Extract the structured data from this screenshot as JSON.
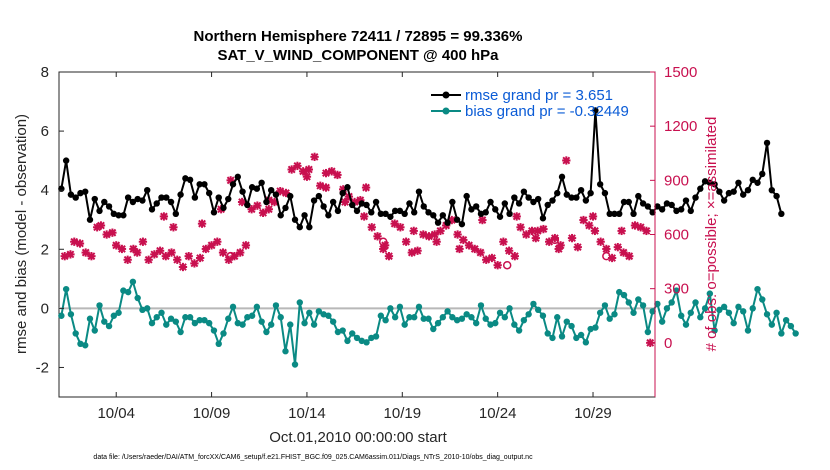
{
  "chart_data": {
    "type": "line",
    "title_line1": "Northern Hemisphere 72411 / 72895 = 99.336%",
    "title_line2": "SAT_V_WIND_COMPONENT @ 400 hPa",
    "ylabel": "rmse and bias (model - observation)",
    "ylabel_right": "# of obs: o=possible; ×=assimilated",
    "xlabel": "Oct.01,2010 00:00:00 start",
    "footnote": "data file: /Users/raeder/DAI/ATM_forcXX/CAM6_setup/f.e21.FHIST_BGC.f09_025.CAM6assim.011/Diags_NTrS_2010-10/obs_diag_output.nc",
    "xlim": [
      1,
      32.25
    ],
    "ylim": [
      -3,
      8
    ],
    "ylim_right": [
      -300,
      1500
    ],
    "x_ticks": [
      4,
      9,
      14,
      19,
      24,
      29
    ],
    "x_tick_labels": [
      "10/04",
      "10/09",
      "10/14",
      "10/19",
      "10/24",
      "10/29"
    ],
    "y_ticks": [
      -2,
      0,
      2,
      4,
      6,
      8
    ],
    "y_tick_labels": [
      "-2",
      "0",
      "2",
      "4",
      "6",
      "8"
    ],
    "y_ticks_right": [
      0,
      300,
      600,
      900,
      1200,
      1500
    ],
    "y_tick_labels_right": [
      "0",
      "300",
      "600",
      "900",
      "1200",
      "1500"
    ],
    "legend": [
      "rmse grand pr = 3.651",
      "bias grand pr = -0.32449"
    ],
    "series": [
      {
        "name": "rmse",
        "color": "#000000",
        "x_start": 1.125,
        "x_step": 0.25,
        "values": [
          4.05,
          5.0,
          3.85,
          3.75,
          3.9,
          3.95,
          3.0,
          3.7,
          3.3,
          3.6,
          3.45,
          3.2,
          3.15,
          3.15,
          3.75,
          3.6,
          3.7,
          3.65,
          4.0,
          3.35,
          3.55,
          3.75,
          3.75,
          3.6,
          3.2,
          3.85,
          4.4,
          4.35,
          3.75,
          4.2,
          4.2,
          3.9,
          3.25,
          3.75,
          3.4,
          3.7,
          4.2,
          4.45,
          3.95,
          3.5,
          4.1,
          4.05,
          4.25,
          3.6,
          4.0,
          3.85,
          3.15,
          3.4,
          3.8,
          3.0,
          2.75,
          3.15,
          2.75,
          3.65,
          3.8,
          3.45,
          3.15,
          3.6,
          3.3,
          3.9,
          4.1,
          3.5,
          3.3,
          3.55,
          3.5,
          3.25,
          3.6,
          3.2,
          3.2,
          3.1,
          3.3,
          3.3,
          3.2,
          3.55,
          3.25,
          3.95,
          3.45,
          3.25,
          3.15,
          2.9,
          3.15,
          2.9,
          3.6,
          3.0,
          2.85,
          3.8,
          3.35,
          3.45,
          3.2,
          3.25,
          3.6,
          3.35,
          3.1,
          3.55,
          3.2,
          3.75,
          3.55,
          3.95,
          3.75,
          3.6,
          3.7,
          3.05,
          3.5,
          3.65,
          3.9,
          4.45,
          3.85,
          3.75,
          3.75,
          4.0,
          3.65,
          3.9,
          6.7,
          4.2,
          3.9,
          3.2,
          3.2,
          3.2,
          3.6,
          3.6,
          3.2,
          3.8,
          3.55,
          3.45,
          3.25,
          3.45,
          3.35,
          3.55,
          3.5,
          3.3,
          3.35,
          3.65,
          3.3,
          3.75,
          4.05,
          4.3,
          4.25,
          4.2,
          3.95,
          3.65,
          3.9,
          3.95,
          4.25,
          3.85,
          4.0,
          4.35,
          4.25,
          4.55,
          5.6,
          4.0,
          3.8,
          3.2
        ]
      },
      {
        "name": "bias",
        "color": "#0a8a84",
        "x_start": 1.125,
        "x_step": 0.25,
        "values": [
          -0.25,
          0.65,
          -0.2,
          -0.85,
          -1.2,
          -1.25,
          -0.35,
          -0.75,
          0.1,
          -0.45,
          -0.6,
          -0.25,
          -0.15,
          0.6,
          0.55,
          0.9,
          0.35,
          -0.05,
          0.0,
          -0.5,
          -0.3,
          -0.15,
          -0.55,
          -0.35,
          -0.45,
          -0.8,
          -0.3,
          -0.3,
          -0.5,
          -0.4,
          -0.4,
          -0.5,
          -0.75,
          -1.2,
          -0.85,
          -0.35,
          0.05,
          -0.5,
          -0.55,
          -0.3,
          -0.25,
          0.05,
          -0.45,
          -0.8,
          -0.55,
          0.1,
          -0.3,
          -1.45,
          -0.55,
          -1.9,
          0.2,
          -0.5,
          -0.15,
          -0.55,
          -0.1,
          -0.2,
          -0.25,
          -0.45,
          -0.8,
          -0.75,
          -1.1,
          -0.85,
          -1.0,
          -1.1,
          -1.15,
          -1.0,
          -0.95,
          -0.25,
          -0.4,
          0.0,
          -0.3,
          0.05,
          -0.55,
          -0.3,
          -0.3,
          0.05,
          -0.35,
          -0.35,
          -0.7,
          -0.5,
          -0.3,
          -0.1,
          -0.3,
          -0.4,
          -0.35,
          -0.2,
          -0.3,
          -0.5,
          0.1,
          -0.35,
          -0.55,
          -0.5,
          -0.15,
          -0.3,
          0.0,
          -0.55,
          -0.75,
          -0.4,
          -0.2,
          0.15,
          -0.05,
          -0.25,
          -0.85,
          -1.0,
          -0.3,
          -0.95,
          -0.45,
          -0.6,
          -1.0,
          -0.9,
          -1.15,
          -0.7,
          -0.65,
          -0.15,
          0.1,
          -0.35,
          -0.2,
          0.55,
          0.45,
          0.2,
          -0.15,
          0.3,
          0.1,
          -0.8,
          -0.1,
          0.15,
          -0.45,
          0.0,
          0.2,
          0.6,
          -0.25,
          -0.55,
          -0.15,
          0.2,
          -0.3,
          0.0,
          0.5,
          -0.75,
          -0.05,
          0.05,
          -0.15,
          -0.5,
          0.05,
          -0.1,
          -0.75,
          0.0,
          0.65,
          0.3,
          -0.2,
          -0.55,
          -0.15,
          -0.85,
          -0.4,
          -0.6,
          -0.85
        ]
      },
      {
        "name": "assimilated obs count",
        "color": "#c8104f",
        "marker": "x",
        "points": [
          [
            1.3,
            480
          ],
          [
            1.6,
            490
          ],
          [
            1.8,
            560
          ],
          [
            2.1,
            550
          ],
          [
            2.4,
            500
          ],
          [
            2.7,
            480
          ],
          [
            3.0,
            640
          ],
          [
            3.2,
            650
          ],
          [
            3.5,
            600
          ],
          [
            3.8,
            610
          ],
          [
            4.0,
            540
          ],
          [
            4.3,
            520
          ],
          [
            4.6,
            460
          ],
          [
            4.9,
            520
          ],
          [
            5.1,
            500
          ],
          [
            5.4,
            560
          ],
          [
            5.7,
            460
          ],
          [
            6.0,
            490
          ],
          [
            6.3,
            510
          ],
          [
            6.6,
            480
          ],
          [
            6.9,
            500
          ],
          [
            7.2,
            460
          ],
          [
            7.5,
            420
          ],
          [
            7.8,
            480
          ],
          [
            8.1,
            440
          ],
          [
            8.4,
            470
          ],
          [
            8.7,
            520
          ],
          [
            9.0,
            540
          ],
          [
            9.3,
            560
          ],
          [
            9.6,
            500
          ],
          [
            9.9,
            460
          ],
          [
            10.2,
            480
          ],
          [
            10.5,
            500
          ],
          [
            10.8,
            540
          ],
          [
            11.1,
            740
          ],
          [
            11.4,
            760
          ],
          [
            11.7,
            720
          ],
          [
            12.0,
            790
          ],
          [
            12.3,
            780
          ],
          [
            12.6,
            840
          ],
          [
            12.9,
            830
          ],
          [
            13.2,
            960
          ],
          [
            13.5,
            980
          ],
          [
            13.8,
            950
          ],
          [
            14.1,
            960
          ],
          [
            14.4,
            1030
          ],
          [
            14.7,
            870
          ],
          [
            15.0,
            860
          ],
          [
            15.3,
            950
          ],
          [
            15.6,
            930
          ],
          [
            15.9,
            850
          ],
          [
            16.2,
            810
          ],
          [
            16.5,
            780
          ],
          [
            16.8,
            790
          ],
          [
            17.1,
            860
          ],
          [
            17.4,
            640
          ],
          [
            17.7,
            590
          ],
          [
            18.0,
            520
          ],
          [
            18.3,
            480
          ],
          [
            18.6,
            660
          ],
          [
            18.9,
            640
          ],
          [
            19.2,
            560
          ],
          [
            19.5,
            500
          ],
          [
            19.8,
            510
          ],
          [
            20.1,
            600
          ],
          [
            20.4,
            590
          ],
          [
            20.7,
            600
          ],
          [
            21.0,
            620
          ],
          [
            21.3,
            650
          ],
          [
            21.6,
            680
          ],
          [
            21.9,
            600
          ],
          [
            22.2,
            570
          ],
          [
            22.5,
            540
          ],
          [
            22.8,
            520
          ],
          [
            23.1,
            500
          ],
          [
            23.4,
            460
          ],
          [
            23.7,
            470
          ],
          [
            24.0,
            430
          ],
          [
            24.3,
            560
          ],
          [
            24.6,
            510
          ],
          [
            24.9,
            480
          ],
          [
            25.2,
            640
          ],
          [
            25.5,
            600
          ],
          [
            25.8,
            620
          ],
          [
            26.1,
            620
          ],
          [
            26.4,
            630
          ],
          [
            26.7,
            560
          ],
          [
            27.0,
            580
          ],
          [
            27.3,
            540
          ],
          [
            27.6,
            1010
          ],
          [
            27.9,
            580
          ],
          [
            28.2,
            530
          ],
          [
            28.5,
            680
          ],
          [
            28.8,
            650
          ],
          [
            29.1,
            620
          ],
          [
            29.4,
            560
          ],
          [
            29.7,
            520
          ],
          [
            30.0,
            470
          ],
          [
            30.3,
            530
          ],
          [
            30.6,
            500
          ],
          [
            30.9,
            480
          ],
          [
            31.2,
            650
          ],
          [
            31.5,
            640
          ],
          [
            31.8,
            620
          ],
          [
            14.0,
            920
          ],
          [
            15.0,
            940
          ],
          [
            12.0,
            740
          ],
          [
            7.0,
            640
          ],
          [
            6.5,
            700
          ],
          [
            8.5,
            660
          ],
          [
            9.5,
            740
          ],
          [
            10.0,
            900
          ],
          [
            10.6,
            780
          ],
          [
            16.0,
            780
          ],
          [
            17.0,
            700
          ],
          [
            18.1,
            540
          ],
          [
            19.6,
            620
          ],
          [
            20.8,
            560
          ],
          [
            22.0,
            520
          ],
          [
            23.2,
            680
          ],
          [
            25.0,
            700
          ],
          [
            26.0,
            580
          ],
          [
            27.2,
            520
          ],
          [
            29.0,
            700
          ],
          [
            30.5,
            620
          ],
          [
            32.0,
            0
          ]
        ]
      },
      {
        "name": "possible obs count",
        "color": "#c8104f",
        "marker": "o",
        "points": [
          [
            10.0,
            480
          ],
          [
            18.0,
            560
          ],
          [
            24.5,
            430
          ],
          [
            27.0,
            570
          ],
          [
            29.7,
            480
          ]
        ]
      }
    ]
  }
}
